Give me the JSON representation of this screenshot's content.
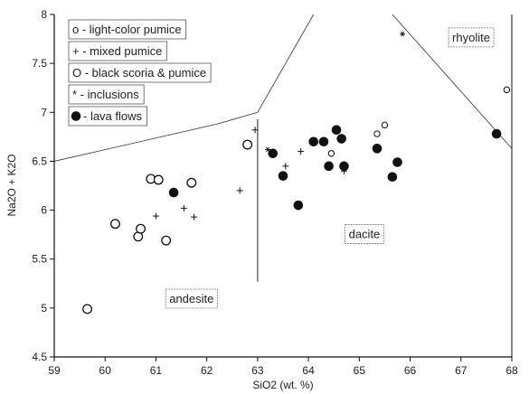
{
  "chart_data": {
    "type": "scatter",
    "xlabel": "SiO2 (wt. %)",
    "ylabel": "Na2O + K2O",
    "xlim": [
      59,
      68
    ],
    "ylim": [
      4.5,
      8
    ],
    "xticks": [
      "59",
      "60",
      "61",
      "62",
      "63",
      "64",
      "65",
      "66",
      "67",
      "68"
    ],
    "yticks": [
      "4.5",
      "5",
      "5.5",
      "6",
      "6.5",
      "7",
      "7.5",
      "8"
    ],
    "grid": false,
    "legend_position": "top-left",
    "legend": [
      {
        "marker": "small-circle",
        "label": "o - light-color pumice"
      },
      {
        "marker": "plus",
        "label": "+ - mixed pumice"
      },
      {
        "marker": "circle",
        "label": "O - black scoria & pumice"
      },
      {
        "marker": "star",
        "label": "* - inclusions"
      },
      {
        "marker": "filled-circle",
        "label": "- lava flows"
      }
    ],
    "region_labels": [
      {
        "label": "rhyolite",
        "x": 67.2,
        "y": 7.77
      },
      {
        "label": "dacite",
        "x": 65.1,
        "y": 5.76
      },
      {
        "label": "andesite",
        "x": 61.7,
        "y": 5.1
      }
    ],
    "boundaries": [
      [
        [
          59,
          6.5
        ],
        [
          62.2,
          6.88
        ],
        [
          63,
          7
        ],
        [
          64.1,
          8
        ]
      ],
      [
        [
          63,
          6.93
        ],
        [
          63,
          5.27
        ]
      ],
      [
        [
          65.65,
          8
        ],
        [
          68,
          6.63
        ]
      ]
    ],
    "series": [
      {
        "name": "light-color pumice",
        "marker": "small-circle",
        "x": [
          64.45,
          65.35,
          65.5,
          67.9
        ],
        "y": [
          6.58,
          6.78,
          6.87,
          7.23
        ]
      },
      {
        "name": "mixed pumice",
        "marker": "plus",
        "x": [
          61.0,
          61.55,
          61.75,
          62.65,
          62.95,
          63.55,
          63.85,
          64.7
        ],
        "y": [
          5.94,
          6.02,
          5.93,
          6.2,
          6.82,
          6.45,
          6.6,
          6.4
        ]
      },
      {
        "name": "black scoria & pumice",
        "marker": "circle",
        "x": [
          59.65,
          60.2,
          60.65,
          60.7,
          60.9,
          61.05,
          61.2,
          61.7,
          62.8
        ],
        "y": [
          4.99,
          5.86,
          5.73,
          5.81,
          6.32,
          6.31,
          5.69,
          6.28,
          6.67
        ]
      },
      {
        "name": "inclusions",
        "marker": "star",
        "x": [
          63.2,
          65.85
        ],
        "y": [
          6.62,
          7.8
        ]
      },
      {
        "name": "lava flows",
        "marker": "filled-circle",
        "x": [
          61.35,
          63.3,
          63.5,
          63.8,
          64.1,
          64.3,
          64.4,
          64.55,
          64.65,
          64.7,
          65.35,
          65.65,
          65.75,
          67.7
        ],
        "y": [
          6.18,
          6.58,
          6.35,
          6.05,
          6.7,
          6.7,
          6.45,
          6.82,
          6.73,
          6.45,
          6.63,
          6.34,
          6.49,
          6.78
        ]
      }
    ]
  }
}
